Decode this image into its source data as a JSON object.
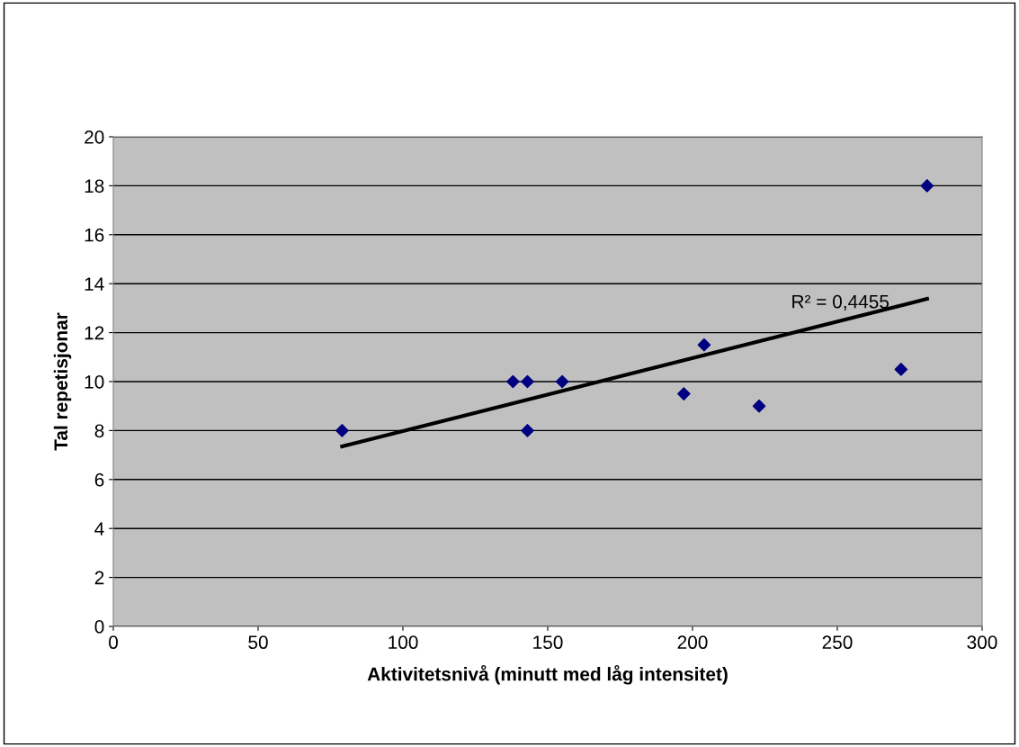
{
  "chart_data": {
    "type": "scatter",
    "xlabel": "Aktivitetsnivå (minutt med låg intensitet)",
    "ylabel": "Tal repetisjonar",
    "series": [
      {
        "color": "#000080",
        "marker": "diamond",
        "x": [
          79,
          138,
          143,
          143,
          155,
          197,
          204,
          223,
          272,
          281
        ],
        "values": [
          8,
          10,
          10,
          8,
          10,
          9.5,
          11.5,
          9,
          10.5,
          18
        ]
      },
      {
        "type": "line",
        "color": "#000000",
        "marker": "none",
        "line_style": "solid",
        "x": [
          79,
          281
        ],
        "values": [
          7.35,
          13.38
        ]
      }
    ],
    "annotations": [
      "R² = 0,4455"
    ],
    "xlim": [
      0,
      300
    ],
    "xticks": [
      0,
      50,
      100,
      150,
      200,
      250,
      300
    ],
    "ylim": [
      0,
      20
    ],
    "yticks": [
      0,
      2,
      4,
      6,
      8,
      10,
      12,
      14,
      16,
      18,
      20
    ],
    "grid": "y",
    "legend": false
  }
}
